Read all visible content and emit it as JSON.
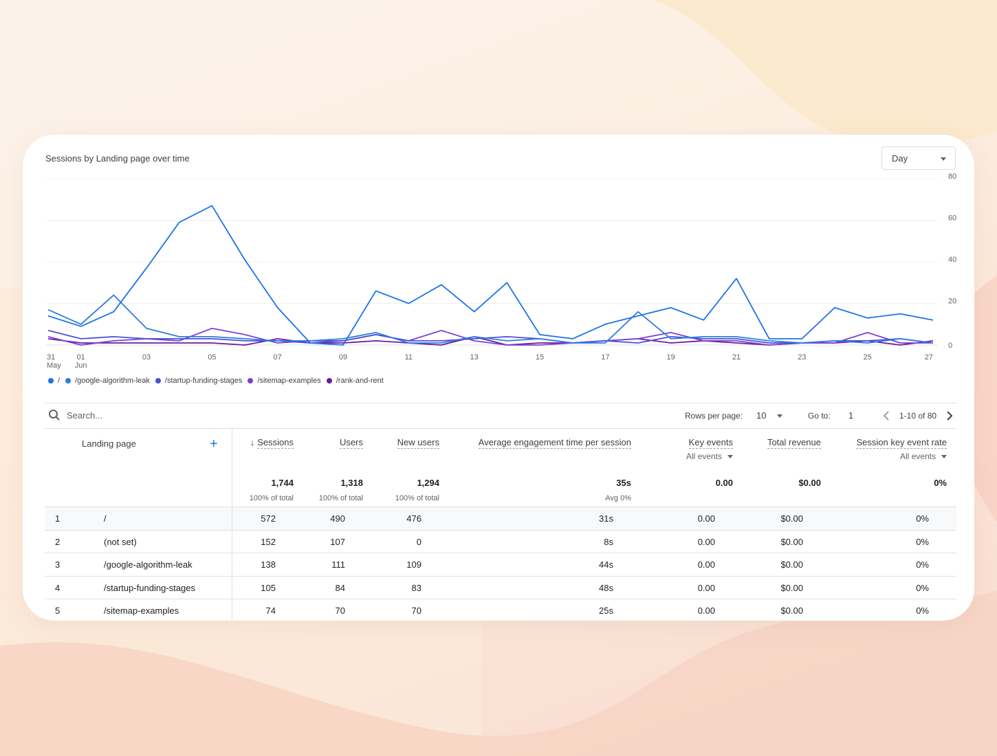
{
  "chart_data": {
    "type": "line",
    "title": "Sessions by Landing page over time",
    "x": [
      "31 May",
      "01 Jun",
      "02",
      "03",
      "04",
      "05",
      "06",
      "07",
      "08",
      "09",
      "10",
      "11",
      "12",
      "13",
      "14",
      "15",
      "16",
      "17",
      "18",
      "19",
      "20",
      "21",
      "22",
      "23",
      "24",
      "25",
      "26",
      "27"
    ],
    "x_tick_labels": [
      {
        "top": "31",
        "bottom": "May",
        "i": 0
      },
      {
        "top": "01",
        "bottom": "Jun",
        "i": 1
      },
      {
        "top": "03",
        "i": 3
      },
      {
        "top": "05",
        "i": 5
      },
      {
        "top": "07",
        "i": 7
      },
      {
        "top": "09",
        "i": 9
      },
      {
        "top": "11",
        "i": 11
      },
      {
        "top": "13",
        "i": 13
      },
      {
        "top": "15",
        "i": 15
      },
      {
        "top": "17",
        "i": 17
      },
      {
        "top": "19",
        "i": 19
      },
      {
        "top": "21",
        "i": 21
      },
      {
        "top": "23",
        "i": 23
      },
      {
        "top": "25",
        "i": 25
      },
      {
        "top": "27",
        "i": 27
      }
    ],
    "y_ticks": [
      "80",
      "60",
      "40",
      "20",
      "0"
    ],
    "ylim": [
      0,
      80
    ],
    "series": [
      {
        "name": "/",
        "color": "#1a73e8",
        "values": [
          14,
          9,
          16,
          37,
          59,
          67,
          41,
          18,
          1,
          0,
          26,
          20,
          29,
          16,
          30,
          5,
          3,
          10,
          14,
          18,
          12,
          32,
          3,
          3,
          18,
          13,
          15,
          12
        ]
      },
      {
        "name": "/google-algorithm-leak",
        "color": "#2d7be0",
        "values": [
          17,
          10,
          24,
          8,
          4,
          4,
          3,
          2,
          2,
          3,
          6,
          1,
          1,
          4,
          2,
          3,
          1,
          1,
          16,
          3,
          4,
          4,
          2,
          1,
          2,
          1,
          3,
          1
        ]
      },
      {
        "name": "/startup-funding-stages",
        "color": "#4b4fd6",
        "values": [
          7,
          3,
          4,
          3,
          3,
          3,
          2,
          2,
          1,
          2,
          5,
          2,
          2,
          3,
          4,
          3,
          1,
          2,
          1,
          4,
          3,
          3,
          1,
          1,
          2,
          2,
          3,
          1
        ]
      },
      {
        "name": "/sitemap-examples",
        "color": "#7b3fd8",
        "values": [
          4,
          0,
          2,
          3,
          2,
          8,
          5,
          1,
          2,
          2,
          5,
          2,
          7,
          2,
          0,
          0,
          1,
          2,
          3,
          6,
          2,
          2,
          0,
          1,
          1,
          6,
          1,
          1
        ]
      },
      {
        "name": "/rank-and-rent",
        "color": "#6a1b9a",
        "values": [
          3,
          1,
          1,
          1,
          1,
          1,
          0,
          3,
          1,
          1,
          2,
          1,
          0,
          4,
          0,
          1,
          1,
          2,
          3,
          1,
          2,
          1,
          0,
          1,
          1,
          2,
          0,
          2
        ]
      }
    ],
    "legend_position": "bottom-left",
    "grid": true
  },
  "period_select": {
    "label": "Day"
  },
  "search": {
    "placeholder": "Search..."
  },
  "pager": {
    "rows_label": "Rows per page:",
    "rows_value": "10",
    "goto_label": "Go to:",
    "goto_value": "1",
    "range": "1-10 of 80"
  },
  "table": {
    "columns": {
      "landing_page": "Landing page",
      "sessions": "Sessions",
      "users": "Users",
      "new_users": "New users",
      "avg_engagement": "Average engagement time per session",
      "key_events": "Key events",
      "key_events_sub": "All events",
      "revenue": "Total revenue",
      "key_event_rate": "Session key event rate",
      "key_event_rate_sub": "All events"
    },
    "totals": {
      "sessions": "1,744",
      "sessions_sub": "100% of total",
      "users": "1,318",
      "users_sub": "100% of total",
      "new_users": "1,294",
      "new_users_sub": "100% of total",
      "avg_engagement": "35s",
      "avg_engagement_sub": "Avg 0%",
      "key_events": "0.00",
      "revenue": "$0.00",
      "key_event_rate": "0%"
    },
    "rows": [
      {
        "rank": "1",
        "page": "/",
        "sessions": "572",
        "users": "490",
        "new_users": "476",
        "avg": "31s",
        "key_events": "0.00",
        "revenue": "$0.00",
        "rate": "0%"
      },
      {
        "rank": "2",
        "page": "(not set)",
        "sessions": "152",
        "users": "107",
        "new_users": "0",
        "avg": "8s",
        "key_events": "0.00",
        "revenue": "$0.00",
        "rate": "0%"
      },
      {
        "rank": "3",
        "page": "/google-algorithm-leak",
        "sessions": "138",
        "users": "111",
        "new_users": "109",
        "avg": "44s",
        "key_events": "0.00",
        "revenue": "$0.00",
        "rate": "0%"
      },
      {
        "rank": "4",
        "page": "/startup-funding-stages",
        "sessions": "105",
        "users": "84",
        "new_users": "83",
        "avg": "48s",
        "key_events": "0.00",
        "revenue": "$0.00",
        "rate": "0%"
      },
      {
        "rank": "5",
        "page": "/sitemap-examples",
        "sessions": "74",
        "users": "70",
        "new_users": "70",
        "avg": "25s",
        "key_events": "0.00",
        "revenue": "$0.00",
        "rate": "0%"
      }
    ]
  }
}
